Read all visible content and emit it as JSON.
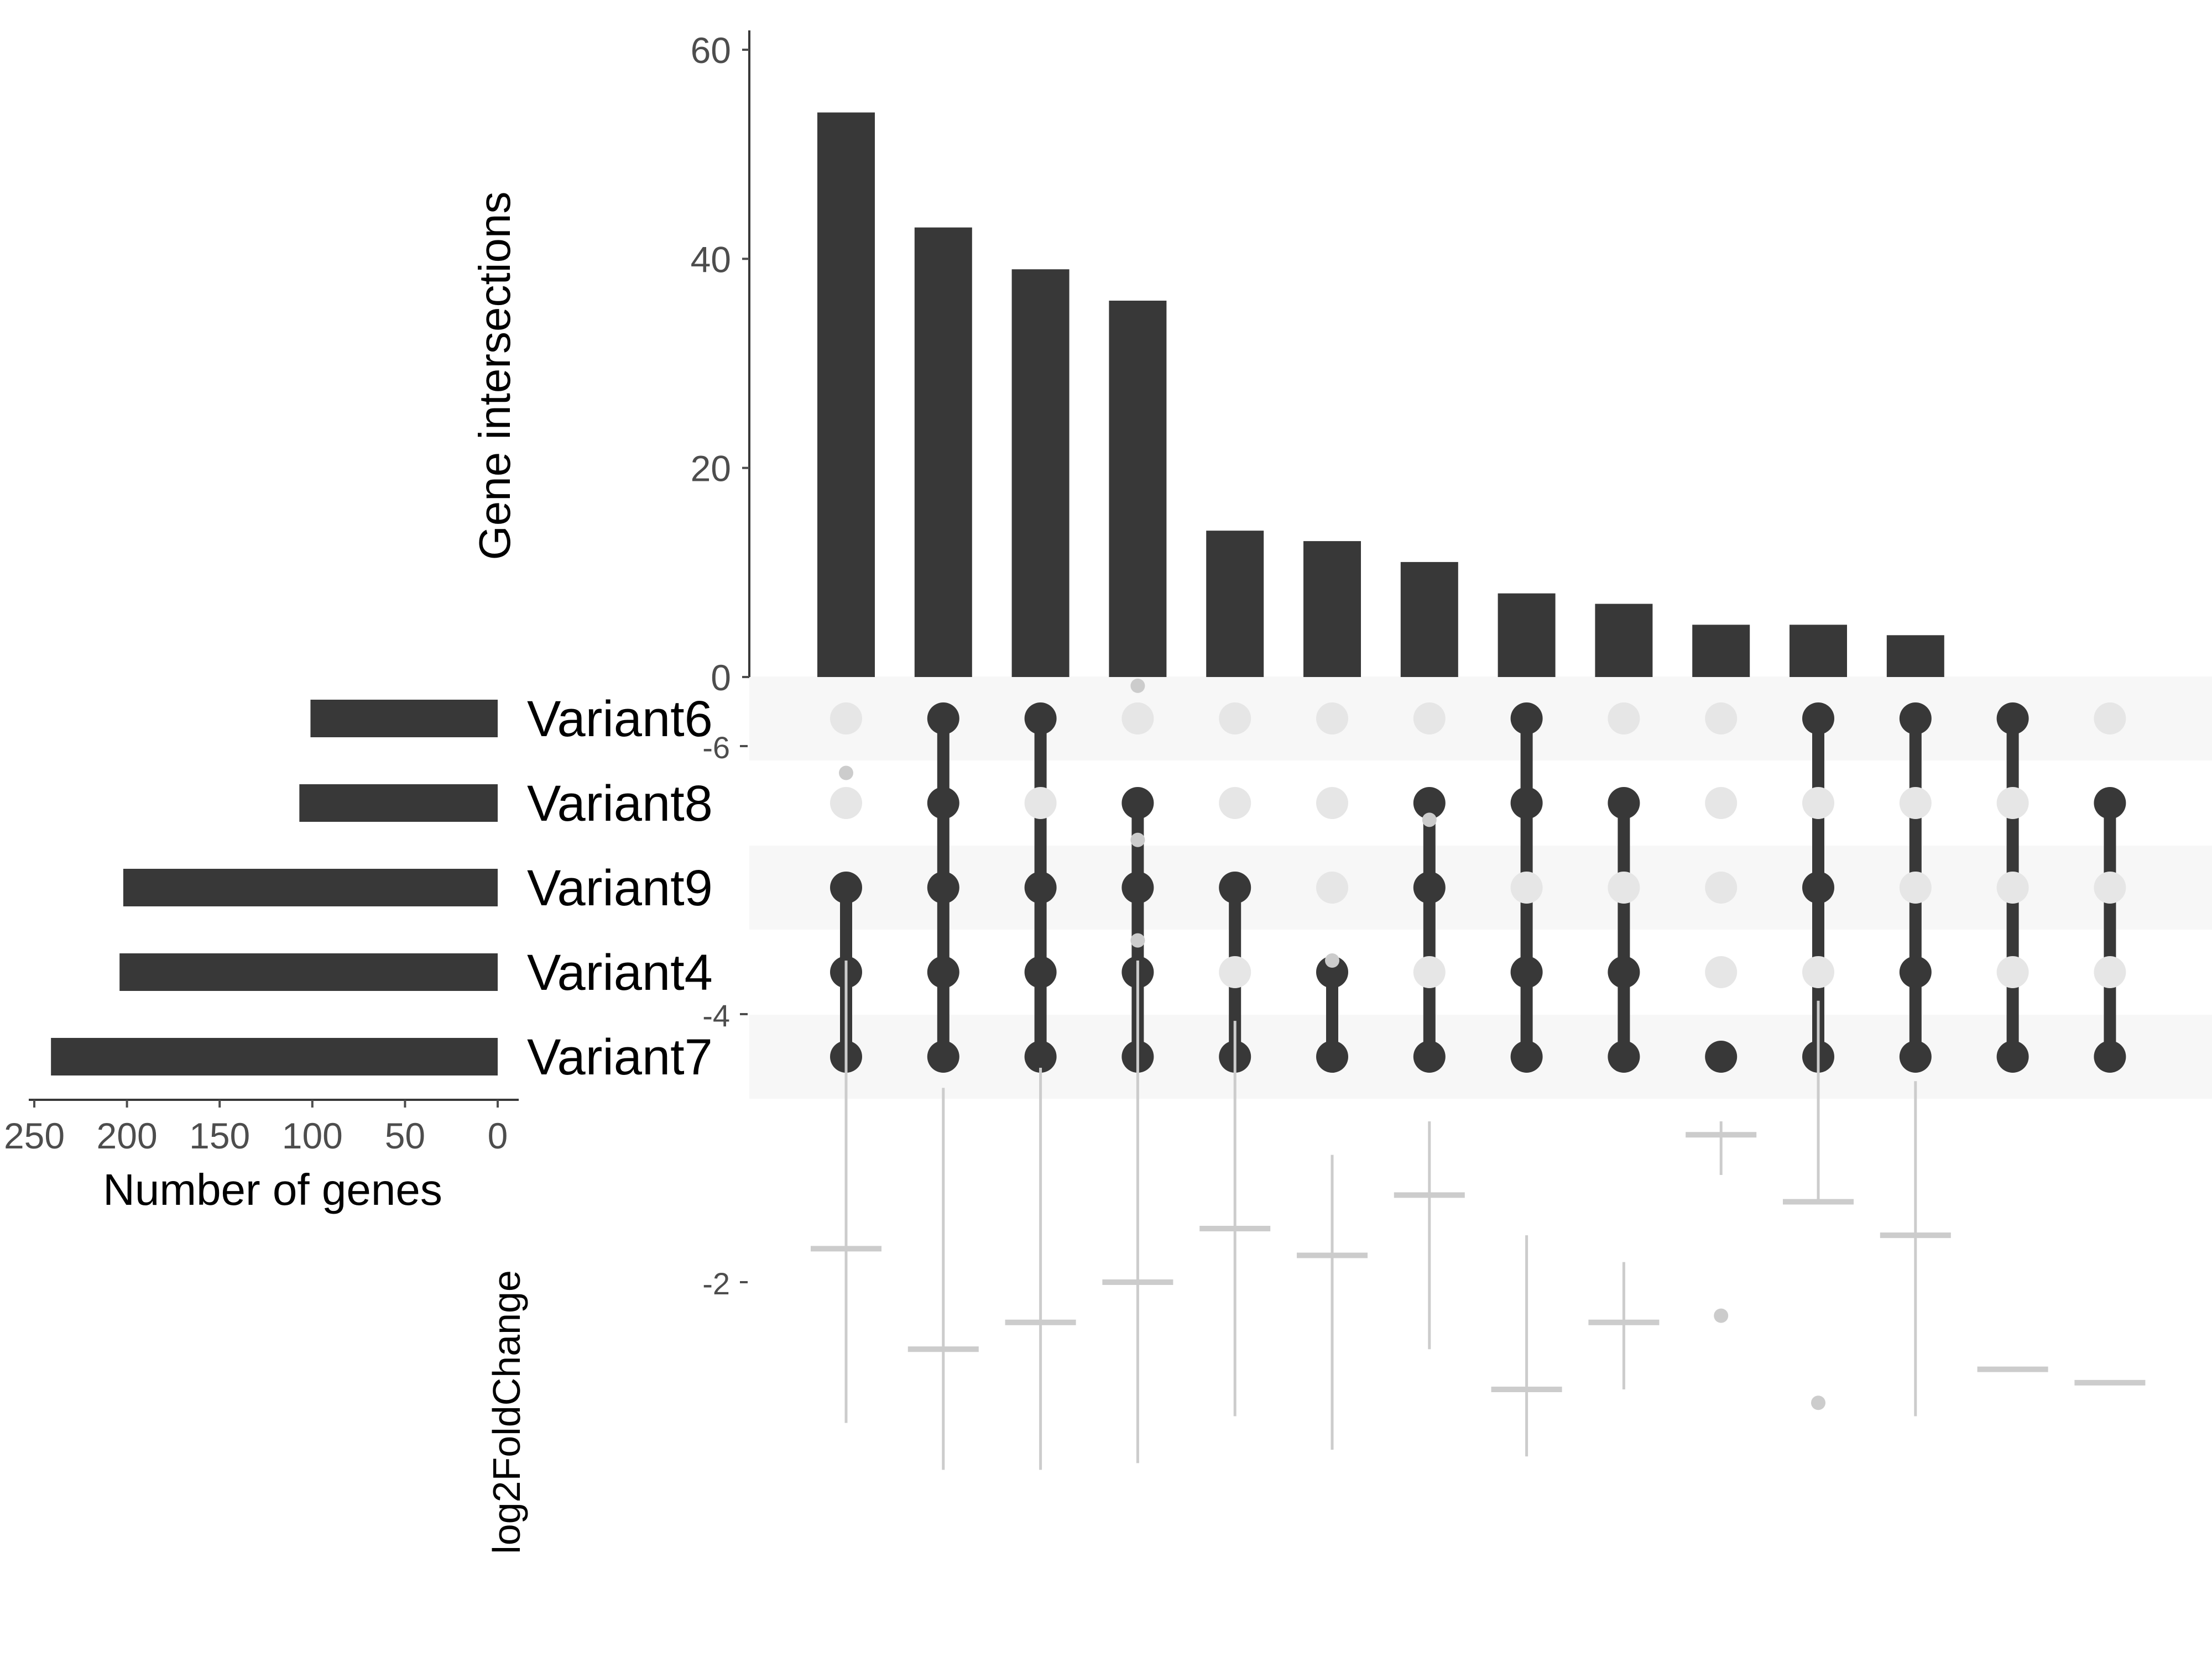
{
  "chart_data": [
    {
      "type": "bar",
      "name": "intersection-sizes",
      "ylabel": "Gene intersections",
      "ylim": [
        0,
        60
      ],
      "yticks": [
        0,
        20,
        40,
        60
      ],
      "values": [
        54,
        43,
        39,
        36,
        14,
        13,
        11,
        8,
        7,
        5,
        5,
        4,
        0,
        0
      ]
    },
    {
      "type": "bar",
      "orientation": "horizontal",
      "name": "set-sizes",
      "xlabel": "Number of genes",
      "xlim": [
        250,
        0
      ],
      "xticks": [
        250,
        200,
        150,
        100,
        50,
        0
      ],
      "categories": [
        "Variant6",
        "Variant8",
        "Variant9",
        "Variant4",
        "Variant7"
      ],
      "values": [
        101,
        107,
        202,
        204,
        241
      ]
    },
    {
      "type": "matrix",
      "name": "intersection-matrix",
      "rows": [
        "Variant6",
        "Variant8",
        "Variant9",
        "Variant4",
        "Variant7"
      ],
      "columns": [
        [
          "Variant9",
          "Variant4",
          "Variant7"
        ],
        [
          "Variant6",
          "Variant8",
          "Variant9",
          "Variant4",
          "Variant7"
        ],
        [
          "Variant6",
          "Variant9",
          "Variant4",
          "Variant7"
        ],
        [
          "Variant8",
          "Variant9",
          "Variant4",
          "Variant7"
        ],
        [
          "Variant9",
          "Variant7"
        ],
        [
          "Variant4",
          "Variant7"
        ],
        [
          "Variant8",
          "Variant9",
          "Variant7"
        ],
        [
          "Variant6",
          "Variant8",
          "Variant4",
          "Variant7"
        ],
        [
          "Variant8",
          "Variant4",
          "Variant7"
        ],
        [
          "Variant7"
        ],
        [
          "Variant6",
          "Variant9",
          "Variant7"
        ],
        [
          "Variant6",
          "Variant4",
          "Variant7"
        ],
        [
          "Variant6",
          "Variant7"
        ],
        [
          "Variant8",
          "Variant7"
        ]
      ]
    },
    {
      "type": "box",
      "name": "log2fc-boxplots",
      "ylabel": "log2FoldChange",
      "ylim": [
        -6.6,
        -0.55
      ],
      "yticks": [
        -2,
        -4,
        -6
      ],
      "boxes": [
        {
          "q1": -2.95,
          "median": -2.25,
          "q3": -1.75,
          "lo": -4.4,
          "hi": -0.95,
          "outliers": [
            -5.8
          ]
        },
        {
          "q1": -2.1,
          "median": -1.5,
          "q3": -1.05,
          "lo": -3.45,
          "hi": -0.6,
          "outliers": []
        },
        {
          "q1": -2.25,
          "median": -1.7,
          "q3": -1.3,
          "lo": -3.6,
          "hi": -0.6,
          "outliers": []
        },
        {
          "q1": -2.65,
          "median": -2.0,
          "q3": -1.4,
          "lo": -4.4,
          "hi": -0.65,
          "outliers": [
            -4.55,
            -5.3,
            -6.45
          ]
        },
        {
          "q1": -3.15,
          "median": -2.4,
          "q3": -2.1,
          "lo": -3.95,
          "hi": -1.0,
          "outliers": []
        },
        {
          "q1": -2.6,
          "median": -2.2,
          "q3": -1.65,
          "lo": -2.95,
          "hi": -0.75,
          "outliers": [
            -4.4
          ]
        },
        {
          "q1": -3.05,
          "median": -2.65,
          "q3": -2.2,
          "lo": -3.2,
          "hi": -1.5,
          "outliers": [
            -5.45
          ]
        },
        {
          "q1": -1.6,
          "median": -1.2,
          "q3": -1.05,
          "lo": -2.35,
          "hi": -0.7,
          "outliers": []
        },
        {
          "q1": -2.1,
          "median": -1.7,
          "q3": -1.5,
          "lo": -2.15,
          "hi": -1.2,
          "outliers": []
        },
        {
          "q1": -3.15,
          "median": -3.1,
          "q3": -2.8,
          "lo": -3.2,
          "hi": -2.8,
          "outliers": [
            -1.75
          ]
        },
        {
          "q1": -3.4,
          "median": -2.6,
          "q3": -2.6,
          "lo": -4.1,
          "hi": -2.6,
          "outliers": [
            -1.1
          ]
        },
        {
          "q1": -2.95,
          "median": -2.35,
          "q3": -1.75,
          "lo": -3.5,
          "hi": -1.0,
          "outliers": []
        },
        {
          "q1": -1.35,
          "median": -1.35,
          "q3": -1.35,
          "lo": -1.35,
          "hi": -1.35,
          "outliers": []
        },
        {
          "q1": -1.25,
          "median": -1.25,
          "q3": -1.25,
          "lo": -1.25,
          "hi": -1.25,
          "outliers": []
        }
      ]
    }
  ]
}
